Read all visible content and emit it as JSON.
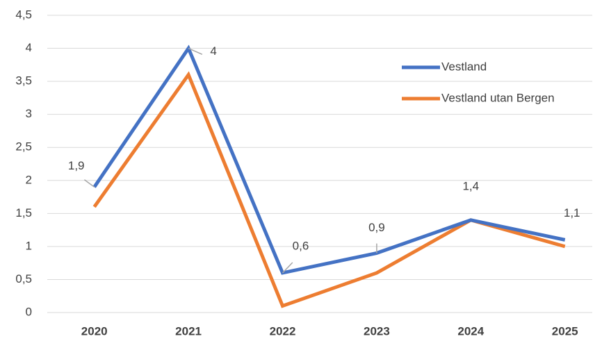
{
  "chart_data": {
    "type": "line",
    "categories": [
      "2020",
      "2021",
      "2022",
      "2023",
      "2024",
      "2025"
    ],
    "series": [
      {
        "name": "Vestland",
        "color": "#4472c4",
        "values": [
          1.9,
          4,
          0.6,
          0.9,
          1.4,
          1.1
        ],
        "value_labels": [
          "1,9",
          "4",
          "0,6",
          "0,9",
          "1,4",
          "1,1"
        ]
      },
      {
        "name": "Vestland utan Bergen",
        "color": "#ed7d31",
        "values": [
          1.6,
          3.6,
          0.1,
          0.6,
          1.4,
          1.0
        ]
      }
    ],
    "ylim": [
      0,
      4.5
    ],
    "yticks": [
      0,
      {
        "value": 0.5,
        "label": "0,5"
      },
      1,
      {
        "value": 1.5,
        "label": "1,5"
      },
      2,
      {
        "value": 2.5,
        "label": "2,5"
      },
      3,
      {
        "value": 3.5,
        "label": "3,5"
      },
      4,
      {
        "value": 4.5,
        "label": "4,5"
      }
    ],
    "grid": true,
    "legend": "upper right"
  }
}
